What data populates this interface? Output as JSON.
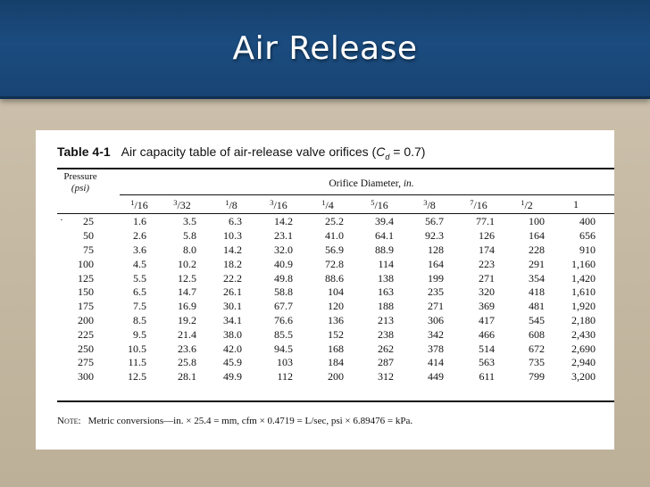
{
  "slide": {
    "title": "Air Release"
  },
  "table": {
    "number": "Table 4-1",
    "caption_text": "Air capacity table of air-release valve orifices (",
    "caption_coef": "C",
    "caption_coef_sub": "d",
    "caption_tail": " = 0.7)",
    "pressure_header": "Pressure",
    "pressure_unit": "(psi)",
    "orifice_header": "Orifice Diameter, ",
    "orifice_unit": "in.",
    "stray_mark": "·",
    "size_columns": [
      {
        "num": "1",
        "den": "16"
      },
      {
        "num": "3",
        "den": "32"
      },
      {
        "num": "1",
        "den": "8"
      },
      {
        "num": "3",
        "den": "16"
      },
      {
        "num": "1",
        "den": "4"
      },
      {
        "num": "5",
        "den": "16"
      },
      {
        "num": "3",
        "den": "8"
      },
      {
        "num": "7",
        "den": "16"
      },
      {
        "num": "1",
        "den": "2"
      },
      {
        "num": "1",
        "den": ""
      }
    ],
    "rows": [
      [
        "25",
        "1.6",
        "3.5",
        "6.3",
        "14.2",
        "25.2",
        "39.4",
        "56.7",
        "77.1",
        "100",
        "400"
      ],
      [
        "50",
        "2.6",
        "5.8",
        "10.3",
        "23.1",
        "41.0",
        "64.1",
        "92.3",
        "126",
        "164",
        "656"
      ],
      [
        "75",
        "3.6",
        "8.0",
        "14.2",
        "32.0",
        "56.9",
        "88.9",
        "128",
        "174",
        "228",
        "910"
      ],
      [
        "100",
        "4.5",
        "10.2",
        "18.2",
        "40.9",
        "72.8",
        "114",
        "164",
        "223",
        "291",
        "1,160"
      ],
      [
        "125",
        "5.5",
        "12.5",
        "22.2",
        "49.8",
        "88.6",
        "138",
        "199",
        "271",
        "354",
        "1,420"
      ],
      [
        "150",
        "6.5",
        "14.7",
        "26.1",
        "58.8",
        "104",
        "163",
        "235",
        "320",
        "418",
        "1,610"
      ],
      [
        "175",
        "7.5",
        "16.9",
        "30.1",
        "67.7",
        "120",
        "188",
        "271",
        "369",
        "481",
        "1,920"
      ],
      [
        "200",
        "8.5",
        "19.2",
        "34.1",
        "76.6",
        "136",
        "213",
        "306",
        "417",
        "545",
        "2,180"
      ],
      [
        "225",
        "9.5",
        "21.4",
        "38.0",
        "85.5",
        "152",
        "238",
        "342",
        "466",
        "608",
        "2,430"
      ],
      [
        "250",
        "10.5",
        "23.6",
        "42.0",
        "94.5",
        "168",
        "262",
        "378",
        "514",
        "672",
        "2,690"
      ],
      [
        "275",
        "11.5",
        "25.8",
        "45.9",
        "103",
        "184",
        "287",
        "414",
        "563",
        "735",
        "2,940"
      ],
      [
        "300",
        "12.5",
        "28.1",
        "49.9",
        "112",
        "200",
        "312",
        "449",
        "611",
        "799",
        "3,200"
      ]
    ],
    "note_label": "Note:",
    "note_text": "Metric conversions—in. × 25.4 = mm, cfm × 0.4719 = L/sec, psi × 6.89476 = kPa."
  }
}
